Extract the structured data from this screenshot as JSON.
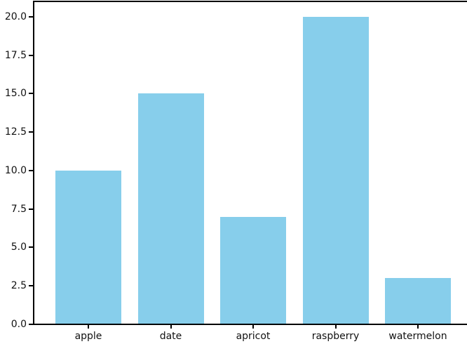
{
  "chart_data": {
    "type": "bar",
    "categories": [
      "apple",
      "date",
      "apricot",
      "raspberry",
      "watermelon"
    ],
    "values": [
      10,
      15,
      7,
      20,
      3
    ],
    "series": [
      {
        "name": "values",
        "values": [
          10,
          15,
          7,
          20,
          3
        ]
      }
    ],
    "title": "",
    "xlabel": "",
    "ylabel": "",
    "ylim": [
      0,
      21
    ],
    "yticks": [
      0.0,
      2.5,
      5.0,
      7.5,
      10.0,
      12.5,
      15.0,
      17.5,
      20.0
    ],
    "ytick_labels": [
      "0.0",
      "2.5",
      "5.0",
      "7.5",
      "10.0",
      "12.5",
      "15.0",
      "17.5",
      "20.0"
    ],
    "grid": false,
    "legend": "none",
    "bar_color": "#87CEEB",
    "spine_color": "#000000",
    "tick_label_color": "#111111"
  }
}
